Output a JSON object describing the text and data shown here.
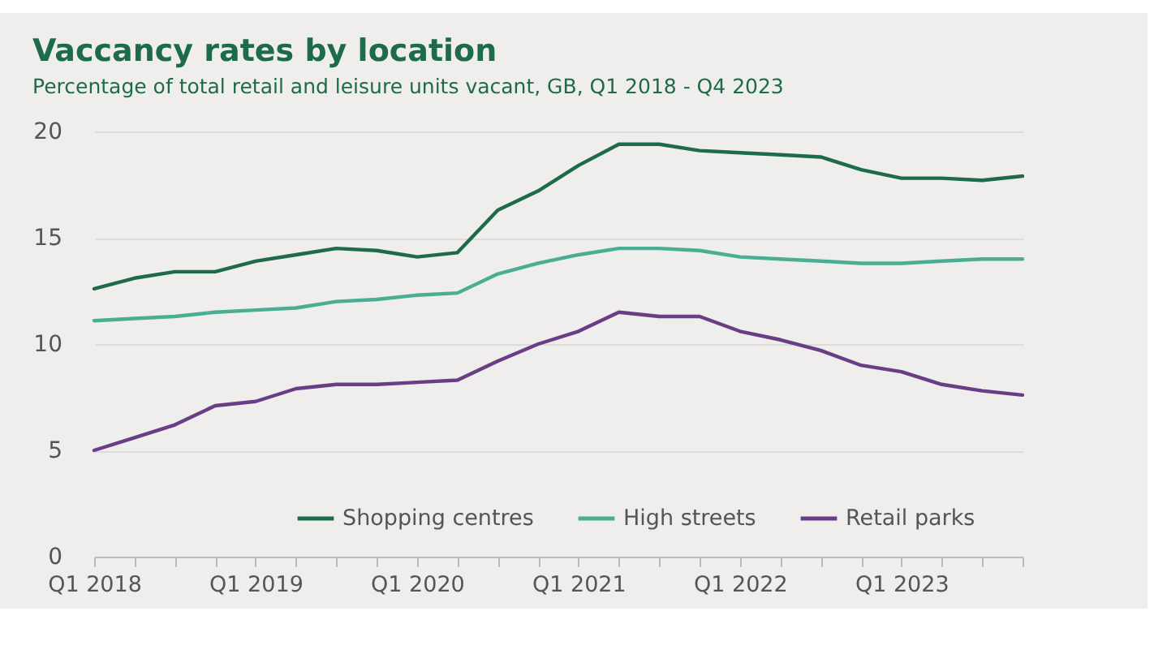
{
  "chart_data": {
    "type": "line",
    "title": "Vaccancy rates by location",
    "subtitle": "Percentage of total retail and leisure units vacant, GB, Q1 2018 - Q4 2023",
    "categories": [
      "Q1 2018",
      null,
      null,
      null,
      "Q1 2019",
      null,
      null,
      null,
      "Q1 2020",
      null,
      null,
      null,
      "Q1 2021",
      null,
      null,
      null,
      "Q1 2022",
      null,
      null,
      null,
      "Q1 2023",
      null,
      null,
      null
    ],
    "series": [
      {
        "name": "Shopping centres",
        "color": "#1e6b4a",
        "values": [
          12.6,
          13.1,
          13.4,
          13.4,
          13.9,
          14.2,
          14.5,
          14.4,
          14.1,
          14.3,
          16.3,
          17.2,
          18.4,
          19.4,
          19.4,
          19.1,
          19.0,
          18.9,
          18.8,
          18.2,
          17.8,
          17.8,
          17.7,
          17.9
        ]
      },
      {
        "name": "High streets",
        "color": "#4aae92",
        "values": [
          11.1,
          11.2,
          11.3,
          11.5,
          11.6,
          11.7,
          12.0,
          12.1,
          12.3,
          12.4,
          13.3,
          13.8,
          14.2,
          14.5,
          14.5,
          14.4,
          14.1,
          14.0,
          13.9,
          13.8,
          13.8,
          13.9,
          14.0,
          14.0
        ]
      },
      {
        "name": "Retail parks",
        "color": "#6a3d87",
        "values": [
          5.0,
          5.6,
          6.2,
          7.1,
          7.3,
          7.9,
          8.1,
          8.1,
          8.2,
          8.3,
          9.2,
          10.0,
          10.6,
          11.5,
          11.3,
          11.3,
          10.6,
          10.2,
          9.7,
          9.0,
          8.7,
          8.1,
          7.8,
          7.6
        ]
      }
    ],
    "ylim": [
      0,
      20
    ],
    "yticks": [
      0,
      5,
      10,
      15,
      20
    ],
    "grid": "y",
    "legend": "bottom",
    "line_style": "solid"
  }
}
